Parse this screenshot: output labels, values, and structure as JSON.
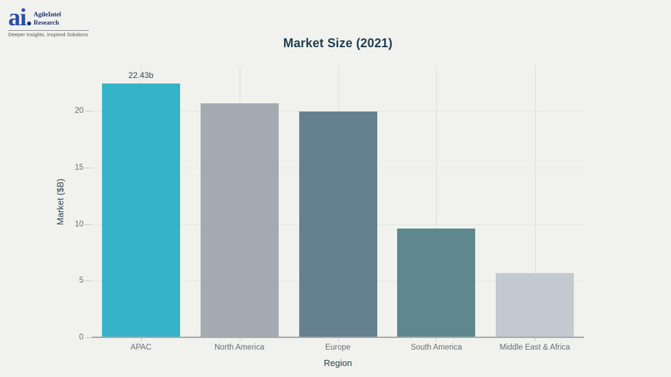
{
  "logo": {
    "mark": "ai",
    "mark_dot": ".",
    "name_line1": "AgileIntel",
    "name_line2": "Research",
    "tagline": "Deeper Insights. Inspired Solutions"
  },
  "chart_data": {
    "type": "bar",
    "title": "Market Size (2021)",
    "xlabel": "Region",
    "ylabel": "Market ($B)",
    "categories": [
      "APAC",
      "North America",
      "Europe",
      "South America",
      "Middle East & Africa"
    ],
    "values": [
      22.43,
      20.7,
      19.95,
      9.6,
      5.7
    ],
    "point_labels": [
      "22.43b",
      "",
      "",
      "",
      ""
    ],
    "bar_colors": [
      "#36b3c9",
      "#a3aab2",
      "#65808f",
      "#5e888d",
      "#c3c9d1"
    ],
    "ylim": [
      0,
      24
    ],
    "yticks": [
      0,
      5,
      10,
      15,
      20
    ],
    "grid": true,
    "legend": "none",
    "background_color": "#f1f2ed",
    "title_color": "#1d3c50",
    "tick_label_color": "#636d73",
    "axis_line_color": "#a4a8aa"
  }
}
